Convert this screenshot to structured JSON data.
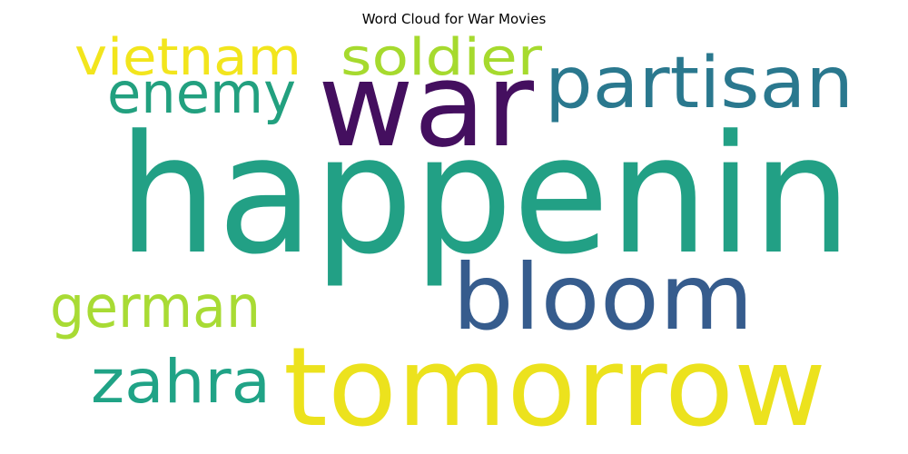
{
  "chart_data": {
    "type": "wordcloud",
    "title": "Word Cloud for War Movies",
    "words": [
      {
        "text": "happenin",
        "color": "#22a085"
      },
      {
        "text": "war",
        "color": "#440f5f"
      },
      {
        "text": "tomorrow",
        "color": "#ece21d"
      },
      {
        "text": "bloom",
        "color": "#365c8d"
      },
      {
        "text": "partisan",
        "color": "#2a788e"
      },
      {
        "text": "enemy",
        "color": "#22a07f"
      },
      {
        "text": "vietnam",
        "color": "#f2e51d"
      },
      {
        "text": "soldier",
        "color": "#a6da2e"
      },
      {
        "text": "german",
        "color": "#a8db34"
      },
      {
        "text": "zahra",
        "color": "#20a386"
      }
    ]
  }
}
